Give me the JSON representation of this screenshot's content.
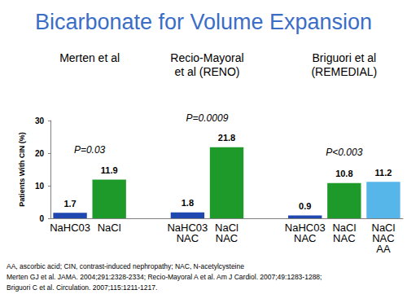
{
  "chart_data": {
    "type": "bar",
    "title": "Bicarbonate for Volume Expansion",
    "categories": [
      "NaHC03",
      "NaCl",
      null,
      "NaHC03\nNAC",
      "NaCl\nNAC",
      null,
      "NaHC03\nNAC",
      "NaCl\nNAC",
      "NaCl\nNAC\nAA"
    ],
    "values": [
      1.7,
      11.9,
      null,
      1.8,
      21.8,
      null,
      0.9,
      10.8,
      11.2
    ],
    "colors": [
      "#1f47b0",
      "#1d9a2a",
      null,
      "#1f47b0",
      "#1d9a2a",
      null,
      "#1f47b0",
      "#1d9a2a",
      "#56b6ea"
    ],
    "group_titles": [
      "Merten et al",
      "Recio-Mayoral\net al (RENO)",
      "Briguori et al\n(REMEDIAL)"
    ],
    "p_values": [
      "P=0.03",
      "P=0.0009",
      "P<0.003"
    ],
    "y_label": "Patients With CIN (%)",
    "ylim": [
      0,
      30
    ],
    "yticks": [
      0,
      10,
      20,
      30
    ],
    "grid": false,
    "data_labels": true,
    "notes": [
      "AA, ascorbic acid; CIN, contrast-induced nephropathy; NAC, N-acetylcysteine",
      "Merten GJ et al. JAMA. 2004;291:2328-2334; Recio-Mayoral A et al. Am J Cardiol. 2007;49:1283-1288;",
      "Briguori C et al. Circulation. 2007;115:1211-1217."
    ]
  }
}
